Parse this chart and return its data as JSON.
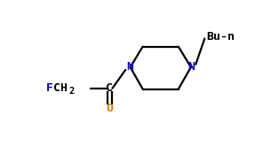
{
  "bg_color": "#ffffff",
  "line_color": "#000000",
  "N_color": "#0000cd",
  "F_color": "#0000cd",
  "O_color": "#cc8800",
  "Bu_n_label": "Bu-n",
  "C_label": "C",
  "O_label": "O",
  "N_label": "N",
  "ring_lw": 1.6,
  "font_size": 9.5,
  "font_size_sub": 7.5
}
